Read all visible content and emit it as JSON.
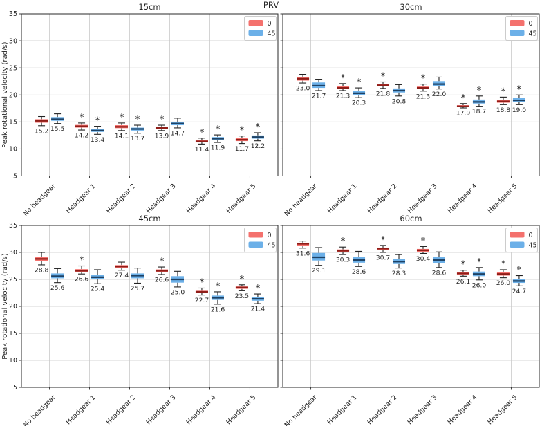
{
  "chart_data": {
    "type": "grouped-boxplot-grid",
    "suptitle": "PRV",
    "ylabel": "Peak rotational velocity (rad/s)",
    "ylim": [
      5,
      35
    ],
    "yticks": [
      5,
      10,
      15,
      20,
      25,
      30,
      35
    ],
    "grid": true,
    "star_char": "*",
    "categories": [
      "No headgear",
      "Headgear 1",
      "Headgear 2",
      "Headgear 3",
      "Headgear 4",
      "Headgear 5"
    ],
    "legend": {
      "position": "upper-right",
      "entries": [
        {
          "label": "0",
          "color": "#f4716d"
        },
        {
          "label": "45",
          "color": "#6cb0e8"
        }
      ]
    },
    "series_style": {
      "0": {
        "fill": "#f4716d",
        "median": "#8f1d18"
      },
      "45": {
        "fill": "#6cb0e8",
        "median": "#1e4265"
      }
    },
    "colors": {
      "whisker": "#222222",
      "grid": "#c9c9c9",
      "spine": "#2a2a2a",
      "text": "#262626"
    },
    "subplots": [
      {
        "title": "15cm",
        "row": 0,
        "col": 0,
        "show_ytick_labels": true,
        "series": [
          {
            "name": "0",
            "boxes": [
              {
                "lo": 14.3,
                "q1": 14.85,
                "med": 15.2,
                "q3": 15.5,
                "hi": 16.0,
                "star": false,
                "label": "15.2"
              },
              {
                "lo": 13.5,
                "q1": 13.95,
                "med": 14.2,
                "q3": 14.45,
                "hi": 14.8,
                "star": true,
                "label": "14.2"
              },
              {
                "lo": 13.4,
                "q1": 13.85,
                "med": 14.1,
                "q3": 14.4,
                "hi": 14.8,
                "star": true,
                "label": "14.1"
              },
              {
                "lo": 13.4,
                "q1": 13.7,
                "med": 13.9,
                "q3": 14.1,
                "hi": 14.4,
                "star": true,
                "label": "13.9"
              },
              {
                "lo": 10.9,
                "q1": 11.2,
                "med": 11.4,
                "q3": 11.6,
                "hi": 12.0,
                "star": true,
                "label": "11.4"
              },
              {
                "lo": 11.0,
                "q1": 11.45,
                "med": 11.7,
                "q3": 12.0,
                "hi": 12.4,
                "star": true,
                "label": "11.7"
              }
            ]
          },
          {
            "name": "45",
            "boxes": [
              {
                "lo": 14.7,
                "q1": 15.2,
                "med": 15.5,
                "q3": 15.9,
                "hi": 16.5,
                "star": false,
                "label": "15.5"
              },
              {
                "lo": 12.7,
                "q1": 13.15,
                "med": 13.4,
                "q3": 13.7,
                "hi": 14.2,
                "star": true,
                "label": "13.4"
              },
              {
                "lo": 12.9,
                "q1": 13.4,
                "med": 13.7,
                "q3": 13.95,
                "hi": 14.4,
                "star": true,
                "label": "13.7"
              },
              {
                "lo": 13.9,
                "q1": 14.4,
                "med": 14.7,
                "q3": 15.0,
                "hi": 15.7,
                "star": false,
                "label": "14.7"
              },
              {
                "lo": 11.2,
                "q1": 11.65,
                "med": 11.9,
                "q3": 12.2,
                "hi": 12.6,
                "star": true,
                "label": "11.9"
              },
              {
                "lo": 11.5,
                "q1": 11.9,
                "med": 12.2,
                "q3": 12.5,
                "hi": 13.0,
                "star": true,
                "label": "12.2"
              }
            ]
          }
        ]
      },
      {
        "title": "30cm",
        "row": 0,
        "col": 1,
        "show_ytick_labels": false,
        "series": [
          {
            "name": "0",
            "boxes": [
              {
                "lo": 22.2,
                "q1": 22.65,
                "med": 23.0,
                "q3": 23.35,
                "hi": 23.8,
                "star": false,
                "label": "23.0"
              },
              {
                "lo": 20.8,
                "q1": 21.1,
                "med": 21.3,
                "q3": 21.6,
                "hi": 22.1,
                "star": true,
                "label": "21.3"
              },
              {
                "lo": 21.2,
                "q1": 21.6,
                "med": 21.8,
                "q3": 22.05,
                "hi": 22.4,
                "star": true,
                "label": "21.8"
              },
              {
                "lo": 20.7,
                "q1": 21.1,
                "med": 21.3,
                "q3": 21.55,
                "hi": 22.0,
                "star": true,
                "label": "21.3"
              },
              {
                "lo": 17.6,
                "q1": 17.75,
                "med": 17.9,
                "q3": 18.1,
                "hi": 18.4,
                "star": true,
                "label": "17.9"
              },
              {
                "lo": 18.2,
                "q1": 18.55,
                "med": 18.8,
                "q3": 19.1,
                "hi": 19.6,
                "star": true,
                "label": "18.8"
              }
            ]
          },
          {
            "name": "45",
            "boxes": [
              {
                "lo": 20.8,
                "q1": 21.3,
                "med": 21.7,
                "q3": 22.3,
                "hi": 22.9,
                "star": false,
                "label": "21.7"
              },
              {
                "lo": 19.5,
                "q1": 20.0,
                "med": 20.3,
                "q3": 20.75,
                "hi": 21.3,
                "star": true,
                "label": "20.3"
              },
              {
                "lo": 19.8,
                "q1": 20.45,
                "med": 20.8,
                "q3": 21.2,
                "hi": 21.9,
                "star": false,
                "label": "20.8"
              },
              {
                "lo": 21.1,
                "q1": 21.6,
                "med": 22.0,
                "q3": 22.55,
                "hi": 23.3,
                "star": false,
                "label": "22.0"
              },
              {
                "lo": 17.9,
                "q1": 18.4,
                "med": 18.7,
                "q3": 19.15,
                "hi": 19.8,
                "star": true,
                "label": "18.7"
              },
              {
                "lo": 18.2,
                "q1": 18.7,
                "med": 19.0,
                "q3": 19.45,
                "hi": 20.0,
                "star": true,
                "label": "19.0"
              }
            ]
          }
        ]
      },
      {
        "title": "45cm",
        "row": 1,
        "col": 0,
        "show_ytick_labels": true,
        "series": [
          {
            "name": "0",
            "boxes": [
              {
                "lo": 27.7,
                "q1": 28.35,
                "med": 28.8,
                "q3": 29.2,
                "hi": 30.0,
                "star": false,
                "label": "28.8"
              },
              {
                "lo": 26.0,
                "q1": 26.35,
                "med": 26.6,
                "q3": 26.9,
                "hi": 27.5,
                "star": true,
                "label": "26.6"
              },
              {
                "lo": 26.7,
                "q1": 27.1,
                "med": 27.4,
                "q3": 27.65,
                "hi": 28.2,
                "star": false,
                "label": "27.4"
              },
              {
                "lo": 25.9,
                "q1": 26.3,
                "med": 26.6,
                "q3": 26.85,
                "hi": 27.3,
                "star": true,
                "label": "26.6"
              },
              {
                "lo": 22.1,
                "q1": 22.45,
                "med": 22.7,
                "q3": 22.9,
                "hi": 23.4,
                "star": true,
                "label": "22.7"
              },
              {
                "lo": 22.9,
                "q1": 23.25,
                "med": 23.5,
                "q3": 23.7,
                "hi": 24.0,
                "star": true,
                "label": "23.5"
              }
            ]
          },
          {
            "name": "45",
            "boxes": [
              {
                "lo": 24.4,
                "q1": 25.2,
                "med": 25.6,
                "q3": 26.1,
                "hi": 27.0,
                "star": false,
                "label": "25.6"
              },
              {
                "lo": 24.2,
                "q1": 25.0,
                "med": 25.4,
                "q3": 25.8,
                "hi": 26.8,
                "star": false,
                "label": "25.4"
              },
              {
                "lo": 24.3,
                "q1": 25.2,
                "med": 25.7,
                "q3": 26.1,
                "hi": 27.1,
                "star": false,
                "label": "25.7"
              },
              {
                "lo": 23.6,
                "q1": 24.4,
                "med": 25.0,
                "q3": 25.6,
                "hi": 26.5,
                "star": false,
                "label": "25.0"
              },
              {
                "lo": 20.4,
                "q1": 21.2,
                "med": 21.6,
                "q3": 22.0,
                "hi": 22.7,
                "star": true,
                "label": "21.6"
              },
              {
                "lo": 20.5,
                "q1": 21.05,
                "med": 21.4,
                "q3": 21.75,
                "hi": 22.3,
                "star": true,
                "label": "21.4"
              }
            ]
          }
        ]
      },
      {
        "title": "60cm",
        "row": 1,
        "col": 1,
        "show_ytick_labels": false,
        "series": [
          {
            "name": "0",
            "boxes": [
              {
                "lo": 30.8,
                "q1": 31.25,
                "med": 31.6,
                "q3": 31.8,
                "hi": 32.1,
                "star": false,
                "label": "31.6"
              },
              {
                "lo": 29.6,
                "q1": 30.05,
                "med": 30.3,
                "q3": 30.55,
                "hi": 31.0,
                "star": true,
                "label": "30.3"
              },
              {
                "lo": 30.0,
                "q1": 30.4,
                "med": 30.7,
                "q3": 30.9,
                "hi": 31.3,
                "star": true,
                "label": "30.7"
              },
              {
                "lo": 29.8,
                "q1": 30.1,
                "med": 30.4,
                "q3": 30.65,
                "hi": 31.1,
                "star": true,
                "label": "30.4"
              },
              {
                "lo": 25.6,
                "q1": 25.9,
                "med": 26.1,
                "q3": 26.3,
                "hi": 26.7,
                "star": true,
                "label": "26.1"
              },
              {
                "lo": 25.3,
                "q1": 25.7,
                "med": 26.0,
                "q3": 26.3,
                "hi": 26.8,
                "star": true,
                "label": "26.0"
              }
            ]
          },
          {
            "name": "45",
            "boxes": [
              {
                "lo": 27.6,
                "q1": 28.5,
                "med": 29.1,
                "q3": 29.9,
                "hi": 30.9,
                "star": false,
                "label": "29.1"
              },
              {
                "lo": 27.4,
                "q1": 28.1,
                "med": 28.6,
                "q3": 29.2,
                "hi": 30.2,
                "star": false,
                "label": "28.6"
              },
              {
                "lo": 27.1,
                "q1": 27.85,
                "med": 28.3,
                "q3": 28.75,
                "hi": 29.6,
                "star": false,
                "label": "28.3"
              },
              {
                "lo": 27.2,
                "q1": 28.0,
                "med": 28.6,
                "q3": 29.1,
                "hi": 30.1,
                "star": false,
                "label": "28.6"
              },
              {
                "lo": 24.9,
                "q1": 25.6,
                "med": 26.0,
                "q3": 26.45,
                "hi": 27.2,
                "star": true,
                "label": "26.0"
              },
              {
                "lo": 23.8,
                "q1": 24.35,
                "med": 24.7,
                "q3": 25.1,
                "hi": 25.7,
                "star": true,
                "label": "24.7"
              }
            ]
          }
        ]
      }
    ]
  }
}
